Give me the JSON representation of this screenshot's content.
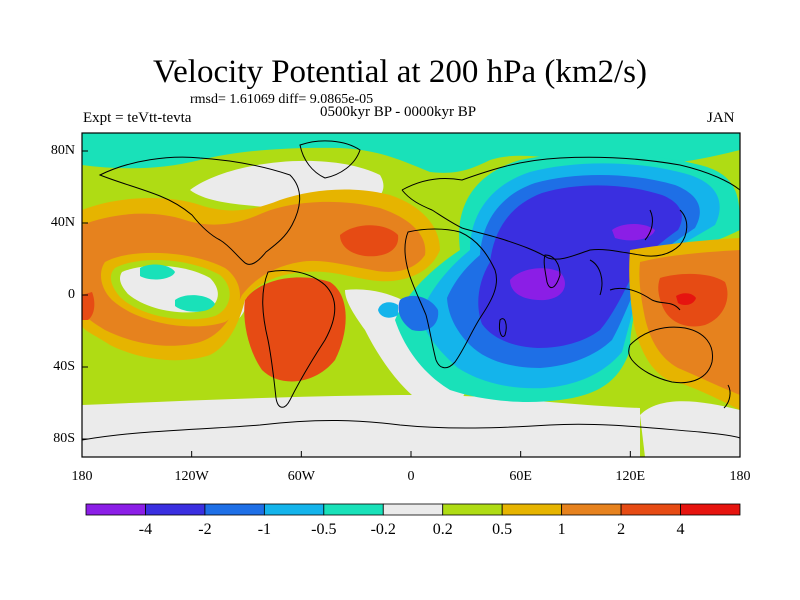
{
  "title": "Velocity Potential at 200 hPa (km2/s)",
  "stats": "rmsd= 1.61069 diff= 9.0865e-05",
  "experiment": "Expt = teVtt-tevta",
  "period": "0500kyr BP - 0000kyr BP",
  "month": "JAN",
  "map": {
    "lat_labels": [
      {
        "text": "80N",
        "lat": 80
      },
      {
        "text": "40N",
        "lat": 40
      },
      {
        "text": "0",
        "lat": 0
      },
      {
        "text": "40S",
        "lat": -40
      },
      {
        "text": "80S",
        "lat": -80
      }
    ],
    "lon_labels": [
      {
        "text": "180",
        "lon": -180
      },
      {
        "text": "120W",
        "lon": -120
      },
      {
        "text": "60W",
        "lon": -60
      },
      {
        "text": "0",
        "lon": 0
      },
      {
        "text": "60E",
        "lon": 60
      },
      {
        "text": "120E",
        "lon": 120
      },
      {
        "text": "180",
        "lon": 180
      }
    ],
    "lat_range": [
      -90,
      90
    ],
    "lon_range": [
      -180,
      180
    ]
  },
  "colorbar": {
    "colors": [
      "#8b1ee6",
      "#3a2fe0",
      "#1e6fe6",
      "#14b4eb",
      "#19e1b9",
      "#ebebeb",
      "#afdc14",
      "#e6b400",
      "#e6821e",
      "#e64b14",
      "#e6140f"
    ],
    "labels": [
      "-4",
      "-2",
      "-1",
      "-0.5",
      "-0.2",
      "0.2",
      "0.5",
      "1",
      "2",
      "4"
    ]
  },
  "palette": {
    "frame": "#000000",
    "coast": "#000000"
  }
}
